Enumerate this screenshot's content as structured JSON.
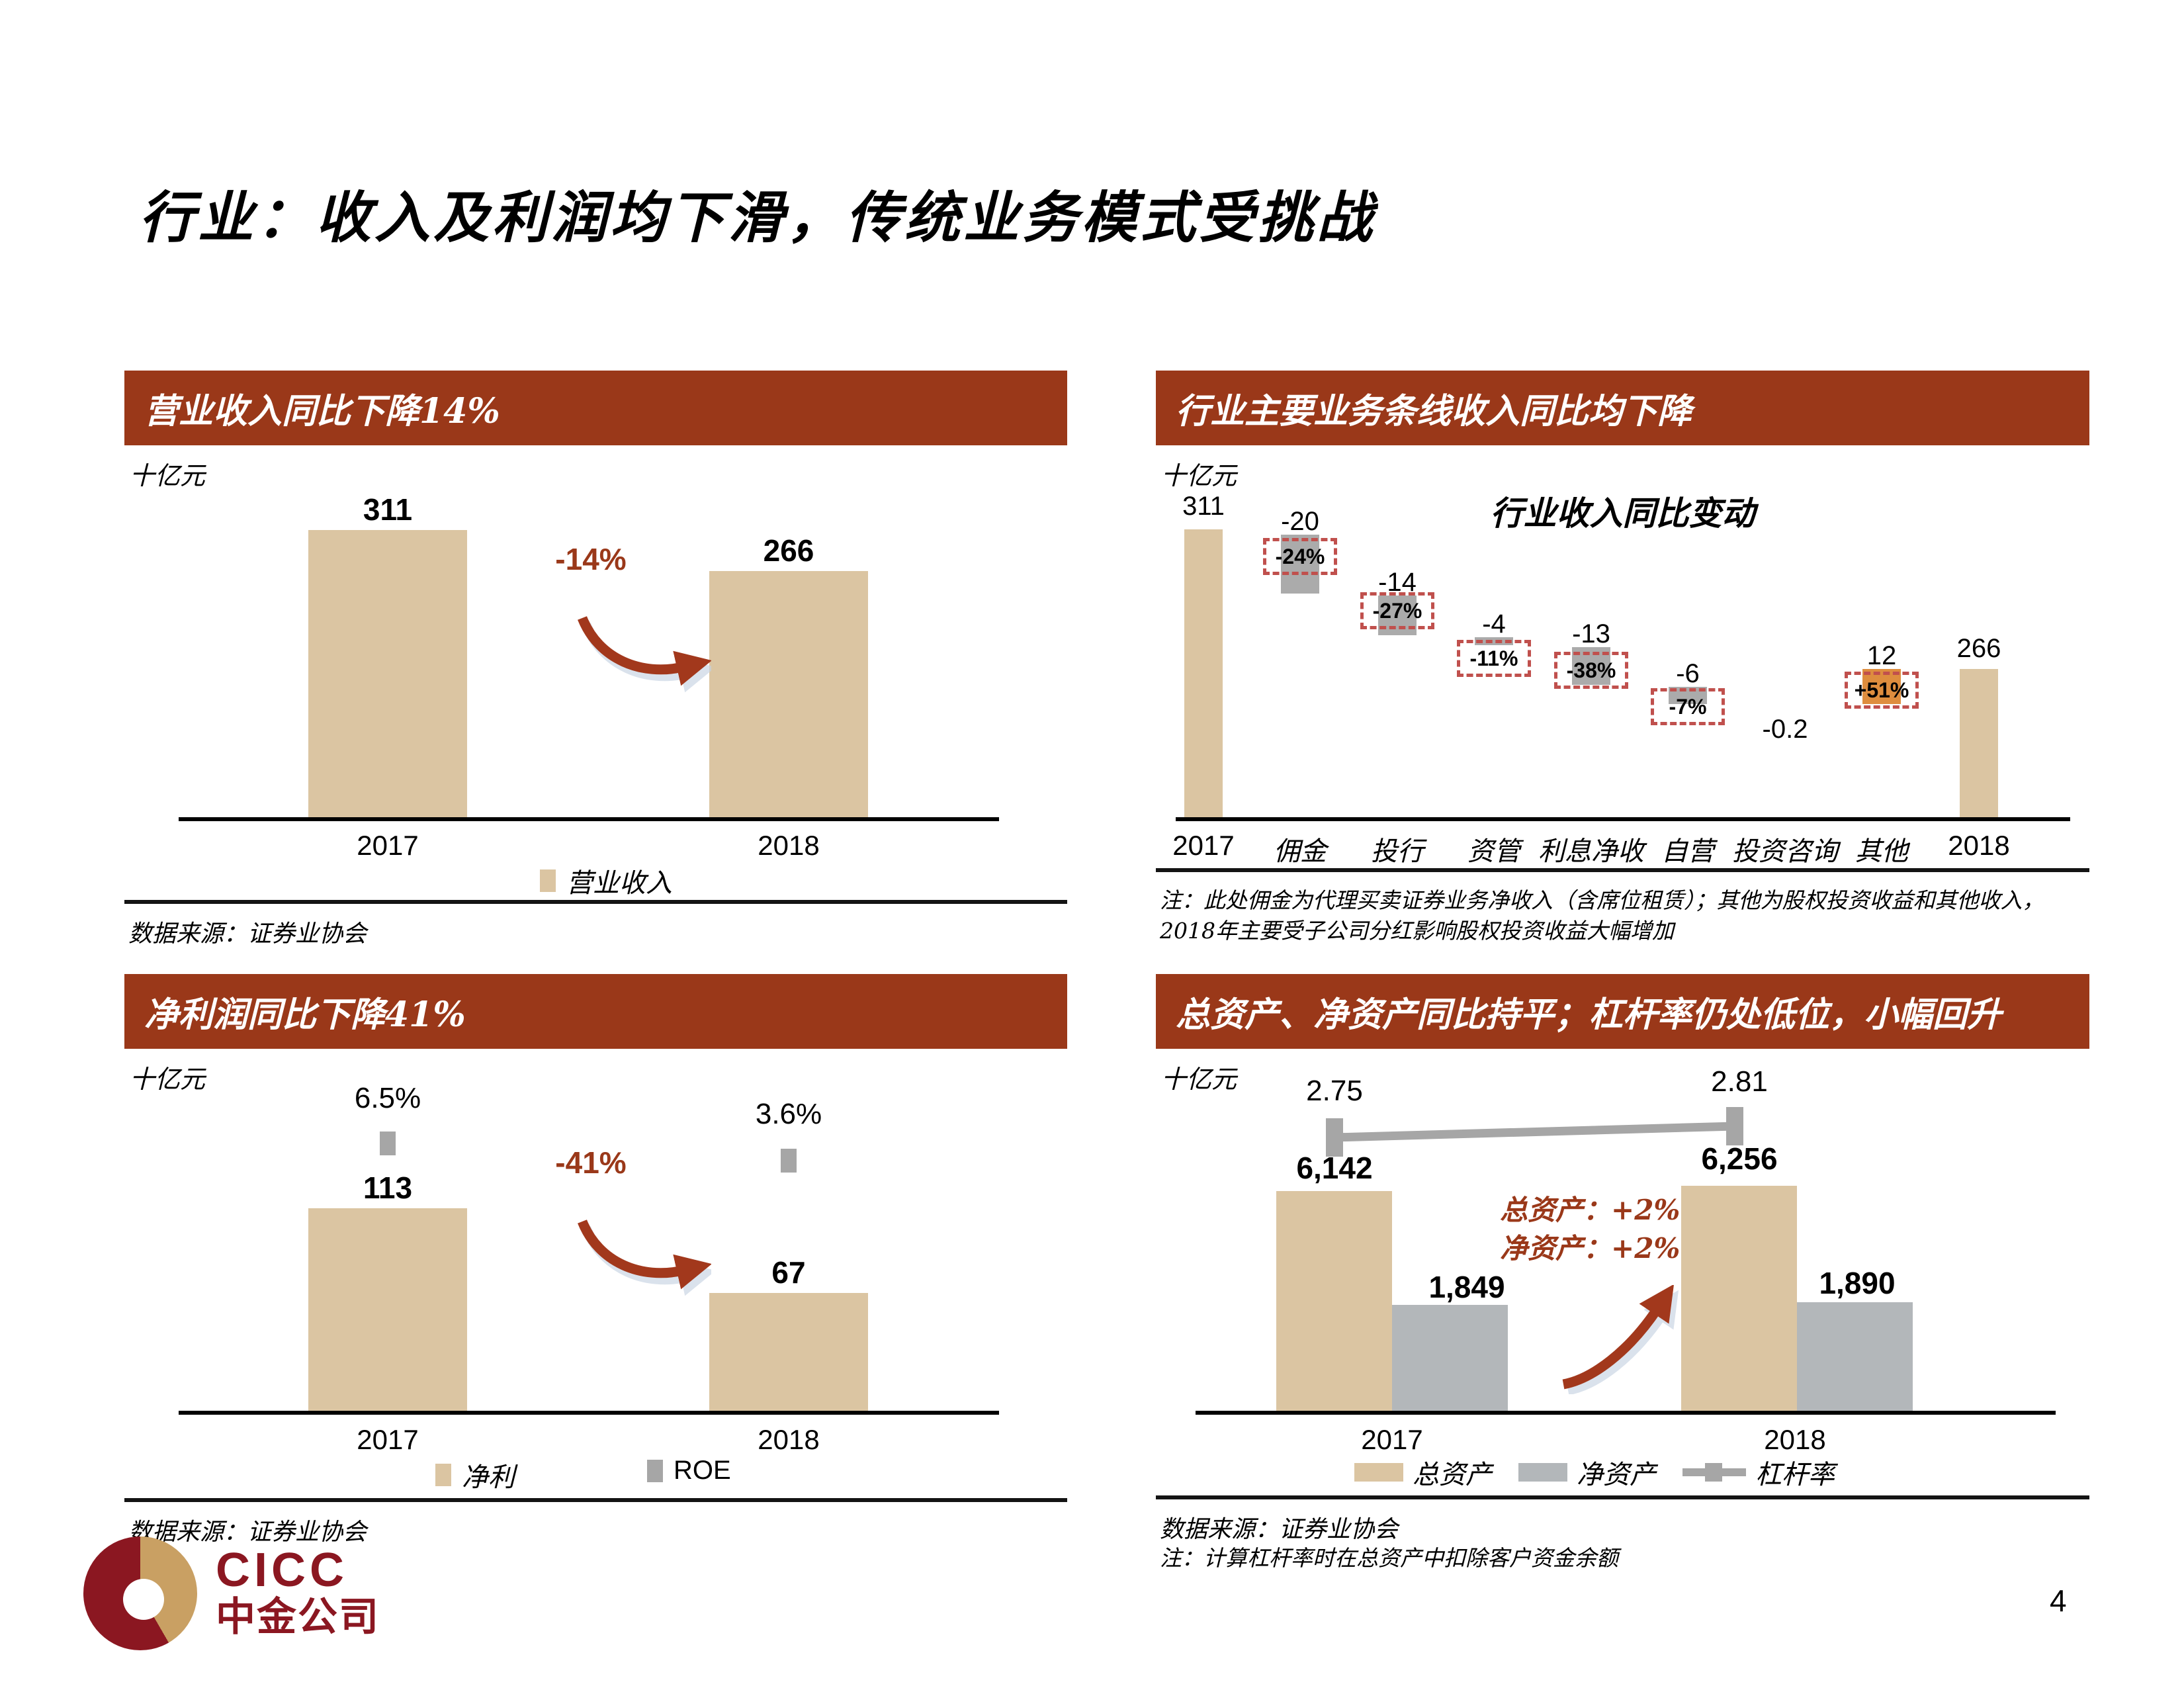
{
  "page": {
    "title": "行业：收入及利润均下滑，传统业务模式受挑战",
    "page_number": "4"
  },
  "logo": {
    "en": "CICC",
    "cn": "中金公司"
  },
  "colors": {
    "header_bg": "#9A3819",
    "accent_red": "#9A3819",
    "bar_tan": "#DBC5A2",
    "bar_gray": "#ABABAB",
    "bar_gray_assets": "#B3B7BA",
    "bar_orange": "#DE8D3E",
    "pct_box_border": "#C0504D",
    "roe_marker": "#A6A6A6",
    "logo_maroon": "#8B1721",
    "logo_tan": "#C9A063"
  },
  "chart_data": [
    {
      "id": "revenue",
      "type": "bar",
      "categories": [
        "2017",
        "2018"
      ],
      "values": [
        311,
        266
      ],
      "values_display": [
        "311",
        "266"
      ],
      "annotation": "-14%",
      "ylabel": "十亿元",
      "legend": [
        "营业收入"
      ]
    },
    {
      "id": "industry_lines",
      "type": "waterfall",
      "title": "行业收入同比变动",
      "categories": [
        "2017",
        "佣金",
        "投行",
        "资管",
        "利息净收",
        "自营",
        "投资咨询",
        "其他",
        "2018"
      ],
      "values": [
        311,
        -20,
        -14,
        -4,
        -13,
        -6,
        -0.2,
        12,
        266
      ],
      "values_display": [
        "311",
        "-20",
        "-14",
        "-4",
        "-13",
        "-6",
        "-0.2",
        "12",
        "266"
      ],
      "pct_labels": [
        "",
        "-24%",
        "-27%",
        "-11%",
        "-38%",
        "-7%",
        "",
        "+51%",
        ""
      ],
      "bar_colors": [
        "#DBC5A2",
        "#ABABAB",
        "#ABABAB",
        "#ABABAB",
        "#ABABAB",
        "#ABABAB",
        "",
        "#DE8D3E",
        "#DBC5A2"
      ],
      "ylabel": "十亿元"
    },
    {
      "id": "profit",
      "type": "bar",
      "categories": [
        "2017",
        "2018"
      ],
      "series": [
        {
          "name": "净利",
          "values": [
            113,
            67
          ],
          "values_display": [
            "113",
            "67"
          ]
        },
        {
          "name": "ROE",
          "values": [
            6.5,
            3.6
          ],
          "values_display": [
            "6.5%",
            "3.6%"
          ]
        }
      ],
      "annotation": "-41%",
      "ylabel": "十亿元"
    },
    {
      "id": "assets",
      "type": "bar+line",
      "categories": [
        "2017",
        "2018"
      ],
      "series": [
        {
          "name": "总资产",
          "values": [
            6142,
            6256
          ],
          "values_display": [
            "6,142",
            "6,256"
          ]
        },
        {
          "name": "净资产",
          "values": [
            1849,
            1890
          ],
          "values_display": [
            "1,849",
            "1,890"
          ]
        },
        {
          "name": "杠杆率",
          "values": [
            2.75,
            2.81
          ],
          "values_display": [
            "2.75",
            "2.81"
          ]
        }
      ],
      "ylabel": "十亿元"
    }
  ],
  "panels": {
    "revenue": {
      "header": "营业收入同比下降14%",
      "unit": "十亿元",
      "source": "数据来源：证券业协会"
    },
    "lines": {
      "header": "行业主要业务条线收入同比均下降",
      "unit": "十亿元",
      "note_line1": "注：此处佣金为代理买卖证券业务净收入（含席位租赁）；其他为股权投资收益和其他收入，",
      "note_line2": "2018年主要受子公司分红影响股权投资收益大幅增加"
    },
    "profit": {
      "header": "净利润同比下降41%",
      "unit": "十亿元",
      "source": "数据来源：证券业协会"
    },
    "assets": {
      "header": "总资产、净资产同比持平；杠杆率仍处低位，小幅回升",
      "unit": "十亿元",
      "annotation_line1": "总资产：+2%",
      "annotation_line2": "净资产：+2%",
      "source": "数据来源：证券业协会",
      "note": "注：计算杠杆率时在总资产中扣除客户资金余额"
    }
  }
}
